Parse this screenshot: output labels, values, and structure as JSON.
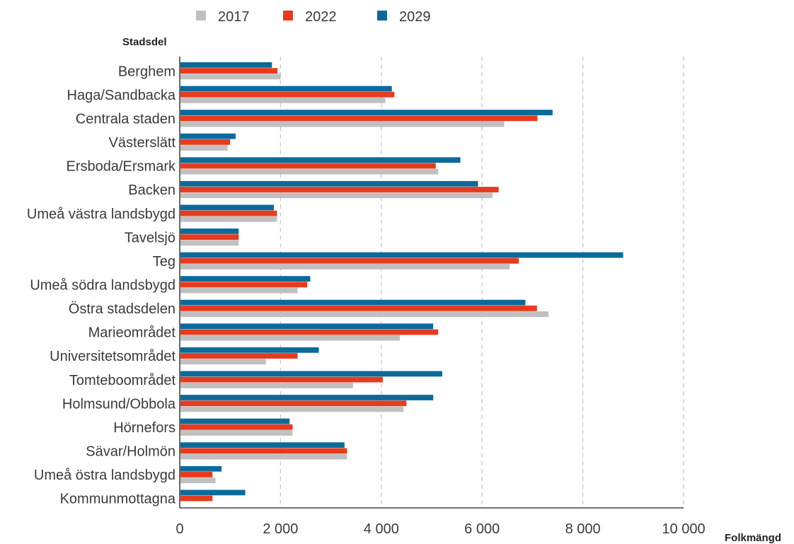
{
  "chart_data": {
    "type": "bar",
    "orientation": "horizontal",
    "ylabel": "Stadsdel",
    "xlabel": "Folkmängd",
    "xlim": [
      0,
      10000
    ],
    "xticks": [
      0,
      2000,
      4000,
      6000,
      8000,
      10000
    ],
    "xtick_labels": [
      "0",
      "2 000",
      "4 000",
      "6 000",
      "8 000",
      "10 000"
    ],
    "grid": "vertical dashed",
    "legend_position": "top",
    "categories": [
      "Berghem",
      "Haga/Sandbacka",
      "Centrala staden",
      "Västerslätt",
      "Ersboda/Ersmark",
      "Backen",
      "Umeå västra landsbygd",
      "Tavelsjö",
      "Teg",
      "Umeå södra landsbygd",
      "Östra stadsdelen",
      "Marieområdet",
      "Universitetsområdet",
      "Tomteboområdet",
      "Holmsund/Obbola",
      "Hörnefors",
      "Sävar/Holmön",
      "Umeå östra landsbygd",
      "Kommunmottagna"
    ],
    "series": [
      {
        "name": "2017",
        "color": "#c0c0c0",
        "values": [
          2000,
          4080,
          6440,
          950,
          5130,
          6210,
          1930,
          1170,
          6550,
          2340,
          7320,
          4370,
          1710,
          3440,
          4440,
          2240,
          3320,
          710,
          0
        ]
      },
      {
        "name": "2022",
        "color": "#e63b1f",
        "values": [
          1940,
          4260,
          7100,
          1000,
          5080,
          6330,
          1930,
          1170,
          6730,
          2530,
          7090,
          5130,
          2340,
          4030,
          4500,
          2240,
          3320,
          650,
          650
        ]
      },
      {
        "name": "2029",
        "color": "#0b6a9a",
        "values": [
          1830,
          4210,
          7400,
          1110,
          5570,
          5920,
          1870,
          1170,
          8800,
          2590,
          6860,
          5030,
          2760,
          5210,
          5030,
          2180,
          3270,
          830,
          1300
        ]
      }
    ]
  }
}
